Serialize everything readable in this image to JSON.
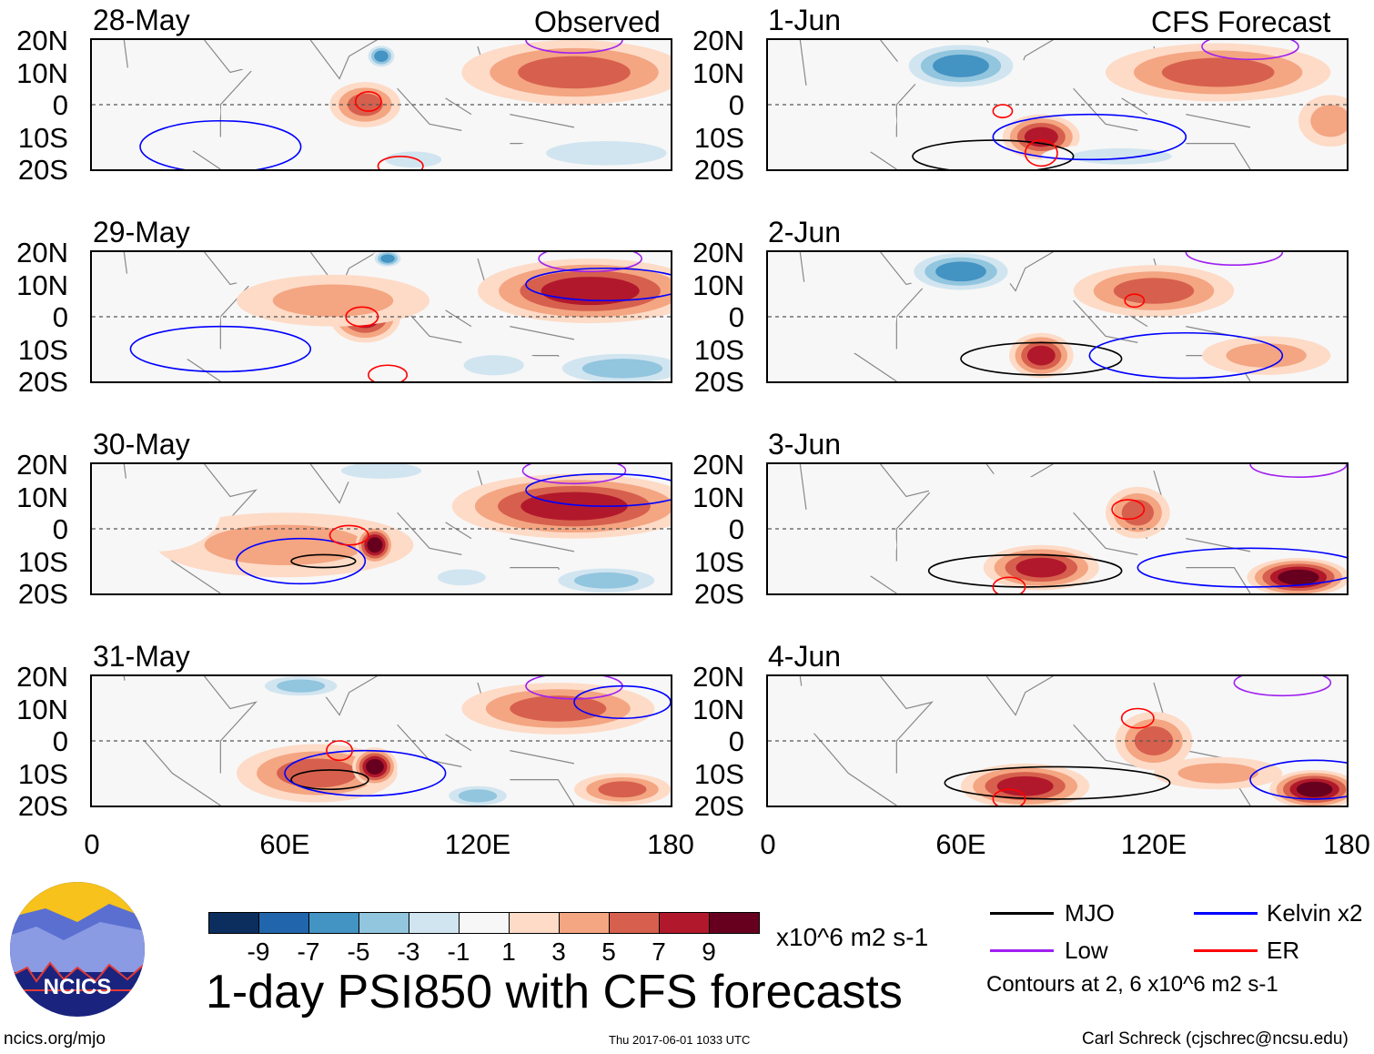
{
  "headers": {
    "observed": "Observed",
    "forecast": "CFS Forecast"
  },
  "lat_labels": [
    "20N",
    "10N",
    "0",
    "10S",
    "20S"
  ],
  "lon_labels": [
    "0",
    "60E",
    "120E",
    "180"
  ],
  "colors": {
    "bins": [
      "#0b2e5e",
      "#2166ac",
      "#4393c3",
      "#92c5de",
      "#d1e5f0",
      "#f7f7f7",
      "#fddbc7",
      "#f4a582",
      "#d6604d",
      "#b2182b",
      "#67001f"
    ],
    "MJO": "#000000",
    "Kelvin": "#0000ff",
    "Low": "#a020f0",
    "ER": "#ff0000"
  },
  "colorbar": {
    "ticks": [
      "-9",
      "-7",
      "-5",
      "-3",
      "-1",
      "1",
      "3",
      "5",
      "7",
      "9"
    ],
    "units": "x10^6 m2 s-1"
  },
  "legend": {
    "items": [
      {
        "key": "MJO",
        "label": "MJO"
      },
      {
        "key": "Kelvin",
        "label": "Kelvin x2"
      },
      {
        "key": "Low",
        "label": "Low"
      },
      {
        "key": "ER",
        "label": "ER"
      }
    ],
    "note": "Contours at 2, 6 x10^6 m2 s-1"
  },
  "title": "1-day PSI850 with CFS forecasts",
  "logo": {
    "text": "NCICS"
  },
  "footer": {
    "url": "ncics.org/mjo",
    "timestamp": "Thu 2017-06-01 1033 UTC",
    "author": "Carl Schreck (cjschrec@ncsu.edu)"
  },
  "chart_data": {
    "type": "heatmap",
    "variable": "PSI850 anomaly",
    "units": "x10^6 m2 s-1",
    "lon_range": [
      0,
      180
    ],
    "lat_range": [
      -20,
      20
    ],
    "panels": [
      {
        "date": "28-May",
        "kind": "observed",
        "features": [
          [
            150,
            10,
            4,
            35,
            10
          ],
          [
            160,
            -15,
            -3,
            30,
            6
          ],
          [
            100,
            -17,
            -3,
            14,
            4
          ],
          [
            20,
            -2,
            -1,
            20,
            15
          ],
          [
            90,
            15,
            -7,
            5,
            4
          ],
          [
            85,
            0,
            5,
            11,
            7
          ],
          [
            55,
            15,
            -1,
            14,
            5
          ]
        ],
        "contours": [
          [
            "ER",
            86,
            1,
            4,
            3
          ],
          [
            "Kelvin",
            40,
            -13,
            25,
            8
          ],
          [
            "Low",
            150,
            20,
            15,
            4
          ],
          [
            "ER",
            96,
            -19,
            7,
            3
          ]
        ]
      },
      {
        "date": "29-May",
        "kind": "observed",
        "features": [
          [
            155,
            8,
            6,
            35,
            10
          ],
          [
            165,
            -16,
            -4,
            25,
            6
          ],
          [
            20,
            0,
            -1,
            20,
            15
          ],
          [
            55,
            14,
            -1,
            14,
            5
          ],
          [
            92,
            18,
            -6,
            5,
            3
          ],
          [
            85,
            0,
            6,
            11,
            8
          ],
          [
            75,
            5,
            2,
            30,
            8
          ],
          [
            125,
            -15,
            -3,
            15,
            5
          ]
        ],
        "contours": [
          [
            "ER",
            84,
            0,
            5,
            3
          ],
          [
            "Kelvin",
            40,
            -10,
            28,
            7
          ],
          [
            "Low",
            155,
            18,
            16,
            4
          ],
          [
            "Kelvin",
            160,
            10,
            25,
            5
          ],
          [
            "ER",
            92,
            -18,
            6,
            3
          ]
        ]
      },
      {
        "date": "30-May",
        "kind": "observed",
        "features": [
          [
            150,
            7,
            7,
            38,
            10
          ],
          [
            60,
            -5,
            3,
            40,
            10
          ],
          [
            88,
            -5,
            9,
            6,
            6
          ],
          [
            160,
            -16,
            -4,
            20,
            5
          ],
          [
            90,
            18,
            -3,
            20,
            4
          ],
          [
            20,
            5,
            -1,
            20,
            12
          ],
          [
            115,
            -15,
            -3,
            12,
            4
          ]
        ],
        "contours": [
          [
            "MJO",
            72,
            -10,
            10,
            2
          ],
          [
            "Kelvin",
            65,
            -10,
            20,
            7
          ],
          [
            "ER",
            80,
            -2,
            6,
            3
          ],
          [
            "Low",
            150,
            18,
            16,
            4
          ],
          [
            "Kelvin",
            160,
            12,
            25,
            5
          ]
        ]
      },
      {
        "date": "31-May",
        "kind": "observed",
        "features": [
          [
            70,
            -10,
            5,
            25,
            9
          ],
          [
            88,
            -8,
            8,
            7,
            6
          ],
          [
            145,
            10,
            4,
            30,
            8
          ],
          [
            165,
            -15,
            4,
            15,
            5
          ],
          [
            65,
            17,
            -5,
            15,
            4
          ],
          [
            20,
            10,
            -1,
            20,
            10
          ],
          [
            120,
            -17,
            -4,
            12,
            4
          ]
        ],
        "contours": [
          [
            "MJO",
            74,
            -12,
            12,
            3
          ],
          [
            "Kelvin",
            85,
            -10,
            25,
            7
          ],
          [
            "ER",
            77,
            -3,
            4,
            3
          ],
          [
            "Low",
            150,
            17,
            15,
            4
          ],
          [
            "Kelvin",
            165,
            12,
            15,
            5
          ]
        ]
      },
      {
        "date": "1-Jun",
        "kind": "forecast",
        "features": [
          [
            60,
            12,
            -7,
            20,
            8
          ],
          [
            140,
            10,
            4,
            35,
            9
          ],
          [
            85,
            -10,
            7,
            12,
            7
          ],
          [
            175,
            -5,
            3,
            10,
            8
          ],
          [
            110,
            -16,
            -2,
            25,
            4
          ],
          [
            20,
            -5,
            -1,
            20,
            12
          ]
        ],
        "contours": [
          [
            "MJO",
            70,
            -16,
            25,
            5
          ],
          [
            "Kelvin",
            100,
            -10,
            30,
            7
          ],
          [
            "ER",
            73,
            -2,
            3,
            2
          ],
          [
            "Low",
            150,
            18,
            15,
            4
          ],
          [
            "ER",
            85,
            -15,
            5,
            4
          ]
        ]
      },
      {
        "date": "2-Jun",
        "kind": "forecast",
        "features": [
          [
            60,
            14,
            -6,
            18,
            7
          ],
          [
            120,
            8,
            4,
            25,
            8
          ],
          [
            85,
            -12,
            6,
            10,
            7
          ],
          [
            155,
            -12,
            3,
            20,
            6
          ],
          [
            20,
            0,
            -1,
            20,
            12
          ]
        ],
        "contours": [
          [
            "MJO",
            85,
            -13,
            25,
            5
          ],
          [
            "Kelvin",
            130,
            -12,
            30,
            7
          ],
          [
            "ER",
            114,
            5,
            3,
            2
          ],
          [
            "Low",
            145,
            20,
            15,
            4
          ]
        ]
      },
      {
        "date": "3-Jun",
        "kind": "forecast",
        "features": [
          [
            85,
            -12,
            6,
            18,
            7
          ],
          [
            115,
            5,
            4,
            10,
            8
          ],
          [
            165,
            -15,
            8,
            16,
            6
          ],
          [
            70,
            12,
            -1,
            20,
            5
          ],
          [
            20,
            -5,
            -1,
            20,
            12
          ]
        ],
        "contours": [
          [
            "MJO",
            80,
            -13,
            30,
            5
          ],
          [
            "Kelvin",
            150,
            -12,
            35,
            6
          ],
          [
            "ER",
            112,
            6,
            5,
            3
          ],
          [
            "Low",
            165,
            20,
            15,
            4
          ],
          [
            "ER",
            75,
            -18,
            5,
            3
          ]
        ]
      },
      {
        "date": "4-Jun",
        "kind": "forecast",
        "features": [
          [
            80,
            -14,
            6,
            20,
            7
          ],
          [
            120,
            0,
            5,
            12,
            9
          ],
          [
            170,
            -15,
            9,
            14,
            6
          ],
          [
            140,
            -10,
            3,
            20,
            5
          ],
          [
            20,
            10,
            -1,
            20,
            8
          ]
        ],
        "contours": [
          [
            "MJO",
            90,
            -13,
            35,
            5
          ],
          [
            "Kelvin",
            170,
            -12,
            20,
            6
          ],
          [
            "ER",
            115,
            7,
            5,
            3
          ],
          [
            "Low",
            160,
            18,
            15,
            4
          ],
          [
            "ER",
            75,
            -18,
            5,
            3
          ]
        ]
      }
    ]
  }
}
